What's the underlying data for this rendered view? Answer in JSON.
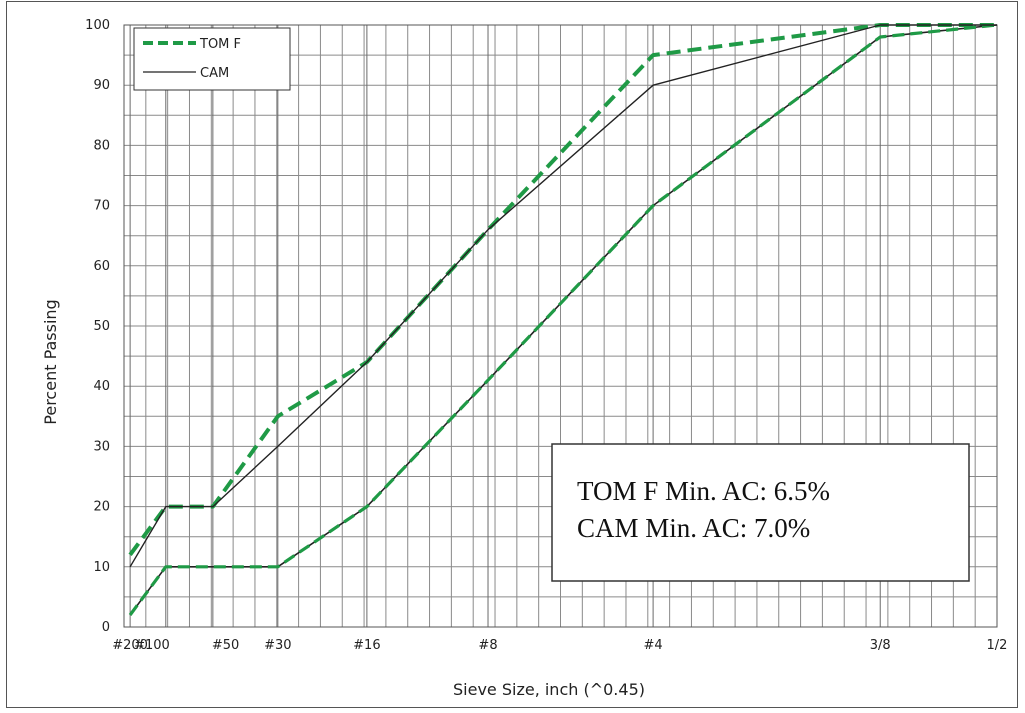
{
  "chart_data": {
    "type": "line",
    "xlabel": "Sieve Size, inch (^0.45)",
    "ylabel": "Percent Passing",
    "x_scale": "power 0.45",
    "xlim": [
      0.0025,
      0.5
    ],
    "ylim": [
      0,
      100
    ],
    "y_ticks": [
      0,
      10,
      20,
      30,
      40,
      50,
      60,
      70,
      80,
      90,
      100
    ],
    "x_ticks": [
      {
        "label": "#200",
        "size_in": 0.0029
      },
      {
        "label": "#100",
        "size_in": 0.0059
      },
      {
        "label": "#50",
        "size_in": 0.0117
      },
      {
        "label": "#30",
        "size_in": 0.0234
      },
      {
        "label": "#16",
        "size_in": 0.0469
      },
      {
        "label": "#8",
        "size_in": 0.0937
      },
      {
        "label": "#4",
        "size_in": 0.187
      },
      {
        "label": "3/8",
        "size_in": 0.375
      },
      {
        "label": "1/2",
        "size_in": 0.5
      }
    ],
    "grid": true,
    "legend_position": "top-left",
    "series": [
      {
        "name": "TOM F",
        "style": "dashed",
        "color": "#1f9a46",
        "points": [
          [
            0.0029,
            12
          ],
          [
            0.0059,
            20
          ],
          [
            0.0117,
            20
          ],
          [
            0.0234,
            35
          ],
          [
            0.0469,
            44
          ],
          [
            0.0937,
            66
          ],
          [
            0.187,
            95
          ],
          [
            0.375,
            100
          ],
          [
            0.5,
            100
          ]
        ]
      },
      {
        "name": "CAM",
        "style": "solid",
        "color": "#222222",
        "points": [
          [
            0.0029,
            10
          ],
          [
            0.0059,
            20
          ],
          [
            0.0117,
            20
          ],
          [
            0.0234,
            30
          ],
          [
            0.0469,
            44
          ],
          [
            0.0937,
            66
          ],
          [
            0.187,
            90
          ],
          [
            0.375,
            100
          ],
          [
            0.5,
            100
          ]
        ]
      },
      {
        "name": "",
        "style": "dashed-on-solid",
        "color": "#1f9a46",
        "points": [
          [
            0.0029,
            2
          ],
          [
            0.0059,
            10
          ],
          [
            0.0117,
            10
          ],
          [
            0.0234,
            10
          ],
          [
            0.0469,
            20
          ],
          [
            0.0937,
            41
          ],
          [
            0.187,
            70
          ],
          [
            0.375,
            98
          ],
          [
            0.5,
            100
          ]
        ]
      }
    ],
    "annotation": {
      "lines": [
        "TOM F Min. AC: 6.5%",
        "CAM Min. AC: 7.0%"
      ]
    }
  }
}
